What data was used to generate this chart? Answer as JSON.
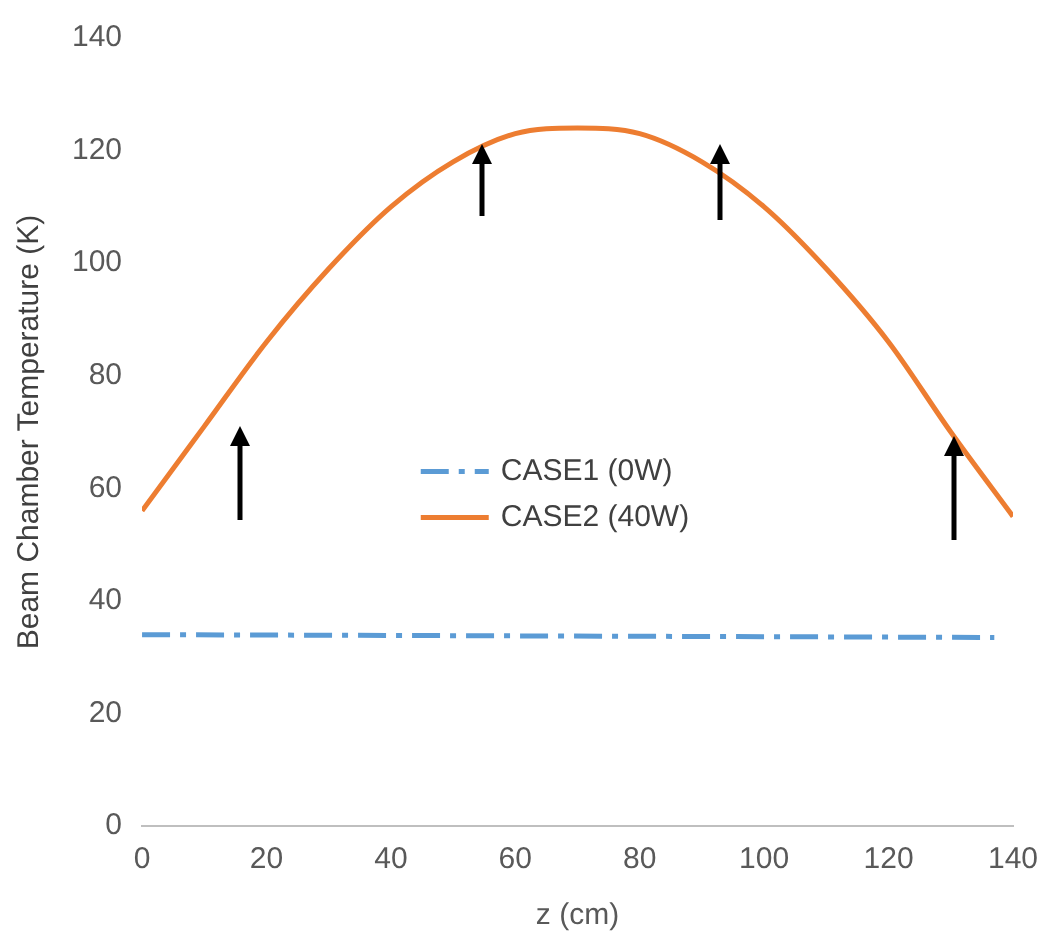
{
  "chart_data": {
    "type": "line",
    "xlabel": "z (cm)",
    "ylabel": "Beam Chamber Temperature (K)",
    "xlim": [
      0,
      140
    ],
    "ylim": [
      0,
      140
    ],
    "xticks": [
      0,
      20,
      40,
      60,
      80,
      100,
      120,
      140
    ],
    "yticks": [
      0,
      20,
      40,
      60,
      80,
      100,
      120,
      140
    ],
    "grid": false,
    "legend": "center",
    "marker": "none",
    "series": [
      {
        "name": "CASE1 (0W)",
        "color": "#5b9bd5",
        "line_style": "dashed",
        "x": [
          0,
          137
        ],
        "values": [
          34,
          33.5
        ]
      },
      {
        "name": "CASE2 (40W)",
        "color": "#ed7d31",
        "line_style": "solid",
        "x": [
          0,
          10,
          20,
          30,
          40,
          50,
          60,
          70,
          80,
          90,
          100,
          110,
          120,
          130,
          140
        ],
        "values": [
          56,
          71,
          86,
          99,
          110,
          118,
          123,
          124,
          123,
          118,
          110,
          99,
          86,
          70,
          55
        ]
      }
    ]
  }
}
